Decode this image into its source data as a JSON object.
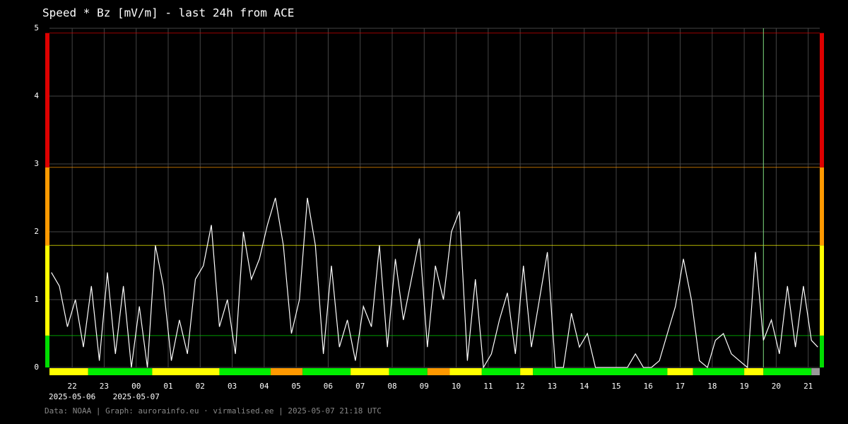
{
  "chart_data": {
    "type": "line",
    "title": "Speed * Bz [mV/m] - last 24h from ACE",
    "footer": "Data: NOAA | Graph: aurorainfo.eu · virmalised.ee | 2025-05-07 21:18 UTC",
    "xlim": [
      21.29,
      45.36
    ],
    "ylim": [
      0,
      5
    ],
    "yticks": [
      0,
      1,
      2,
      3,
      4,
      5
    ],
    "xticks": [
      22,
      23,
      {
        "value": 24,
        "label": "00"
      },
      {
        "value": 25,
        "label": "01"
      },
      {
        "value": 26,
        "label": "02"
      },
      {
        "value": 27,
        "label": "03"
      },
      {
        "value": 28,
        "label": "04"
      },
      {
        "value": 29,
        "label": "05"
      },
      {
        "value": 30,
        "label": "06"
      },
      {
        "value": 31,
        "label": "07"
      },
      {
        "value": 32,
        "label": "08"
      },
      {
        "value": 33,
        "label": "09"
      },
      {
        "value": 34,
        "label": "10"
      },
      {
        "value": 35,
        "label": "11"
      },
      {
        "value": 36,
        "label": "12"
      },
      {
        "value": 37,
        "label": "13"
      },
      {
        "value": 38,
        "label": "14"
      },
      {
        "value": 39,
        "label": "15"
      },
      {
        "value": 40,
        "label": "16"
      },
      {
        "value": 41,
        "label": "17"
      },
      {
        "value": 42,
        "label": "18"
      },
      {
        "value": 43,
        "label": "19"
      },
      {
        "value": 44,
        "label": "20"
      },
      {
        "value": 45,
        "label": "21"
      }
    ],
    "date_labels": [
      {
        "value": 22,
        "label": "2025-05-06"
      },
      {
        "value": 24,
        "label": "2025-05-07"
      }
    ],
    "grid": true,
    "marker_x": 43.6,
    "marker_color": "#7fdc7f",
    "bands": [
      {
        "from": 0,
        "to": 0.47,
        "color": "#00dd00"
      },
      {
        "from": 0.47,
        "to": 1.8,
        "color": "#ffff00"
      },
      {
        "from": 1.8,
        "to": 2.95,
        "color": "#ff9900"
      },
      {
        "from": 2.95,
        "to": 4.93,
        "color": "#dd0000"
      }
    ],
    "status_strip": [
      {
        "from": 21.29,
        "to": 22.5,
        "color": "#ffff00"
      },
      {
        "from": 22.5,
        "to": 24.5,
        "color": "#00ee00"
      },
      {
        "from": 24.5,
        "to": 26.6,
        "color": "#ffff00"
      },
      {
        "from": 26.6,
        "to": 28.2,
        "color": "#00ee00"
      },
      {
        "from": 28.2,
        "to": 29.2,
        "color": "#ff9900"
      },
      {
        "from": 29.2,
        "to": 30.7,
        "color": "#00ee00"
      },
      {
        "from": 30.7,
        "to": 31.9,
        "color": "#ffff00"
      },
      {
        "from": 31.9,
        "to": 33.1,
        "color": "#00ee00"
      },
      {
        "from": 33.1,
        "to": 33.8,
        "color": "#ff9900"
      },
      {
        "from": 33.8,
        "to": 34.8,
        "color": "#ffff00"
      },
      {
        "from": 34.8,
        "to": 36.0,
        "color": "#00ee00"
      },
      {
        "from": 36.0,
        "to": 36.4,
        "color": "#ffff00"
      },
      {
        "from": 36.4,
        "to": 40.6,
        "color": "#00ee00"
      },
      {
        "from": 40.6,
        "to": 41.4,
        "color": "#ffff00"
      },
      {
        "from": 41.4,
        "to": 43.0,
        "color": "#00ee00"
      },
      {
        "from": 43.0,
        "to": 43.6,
        "color": "#ffff00"
      },
      {
        "from": 43.6,
        "to": 45.1,
        "color": "#00ee00"
      },
      {
        "from": 45.1,
        "to": 45.36,
        "color": "#999999"
      }
    ],
    "series": [
      {
        "color": "#ffffff",
        "x": [
          21.35,
          21.6,
          21.85,
          22.1,
          22.35,
          22.6,
          22.85,
          23.1,
          23.35,
          23.6,
          23.85,
          24.1,
          24.35,
          24.6,
          24.85,
          25.1,
          25.35,
          25.6,
          25.85,
          26.1,
          26.35,
          26.6,
          26.85,
          27.1,
          27.35,
          27.6,
          27.85,
          28.1,
          28.35,
          28.6,
          28.85,
          29.1,
          29.35,
          29.6,
          29.85,
          30.1,
          30.35,
          30.6,
          30.85,
          31.1,
          31.35,
          31.6,
          31.85,
          32.1,
          32.35,
          32.6,
          32.85,
          33.1,
          33.35,
          33.6,
          33.85,
          34.1,
          34.35,
          34.6,
          34.85,
          35.1,
          35.35,
          35.6,
          35.85,
          36.1,
          36.35,
          36.6,
          36.85,
          37.1,
          37.35,
          37.6,
          37.85,
          38.1,
          38.35,
          38.6,
          38.85,
          39.1,
          39.35,
          39.6,
          39.85,
          40.1,
          40.35,
          40.6,
          40.85,
          41.1,
          41.35,
          41.6,
          41.85,
          42.1,
          42.35,
          42.6,
          42.85,
          43.1,
          43.35,
          43.6,
          43.85,
          44.1,
          44.35,
          44.6,
          44.85,
          45.1,
          45.3
        ],
        "values": [
          1.4,
          1.2,
          0.6,
          1.0,
          0.3,
          1.2,
          0.1,
          1.4,
          0.2,
          1.2,
          0.0,
          0.9,
          0.0,
          1.8,
          1.2,
          0.1,
          0.7,
          0.2,
          1.3,
          1.5,
          2.1,
          0.6,
          1.0,
          0.2,
          2.0,
          1.3,
          1.6,
          2.1,
          2.5,
          1.8,
          0.5,
          1.0,
          2.5,
          1.8,
          0.2,
          1.5,
          0.3,
          0.7,
          0.1,
          0.9,
          0.6,
          1.8,
          0.3,
          1.6,
          0.7,
          1.3,
          1.9,
          0.3,
          1.5,
          1.0,
          2.0,
          2.3,
          0.1,
          1.3,
          0.0,
          0.2,
          0.7,
          1.1,
          0.2,
          1.5,
          0.3,
          1.0,
          1.7,
          0.0,
          0.0,
          0.8,
          0.3,
          0.5,
          0.0,
          0.0,
          0.0,
          0.0,
          0.0,
          0.2,
          0.0,
          0.0,
          0.1,
          0.5,
          0.9,
          1.6,
          1.0,
          0.1,
          0.0,
          0.4,
          0.5,
          0.2,
          0.1,
          0.0,
          1.7,
          0.4,
          0.7,
          0.2,
          1.2,
          0.3,
          1.2,
          0.4,
          0.3
        ]
      }
    ]
  }
}
